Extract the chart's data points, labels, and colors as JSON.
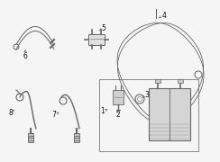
{
  "bg_color": "#f5f5f5",
  "line_color": "#666666",
  "label_color": "#111111",
  "figsize": [
    2.44,
    1.8
  ],
  "dpi": 100,
  "components": {
    "layout": "technical diagram of evaporative emissions system"
  }
}
